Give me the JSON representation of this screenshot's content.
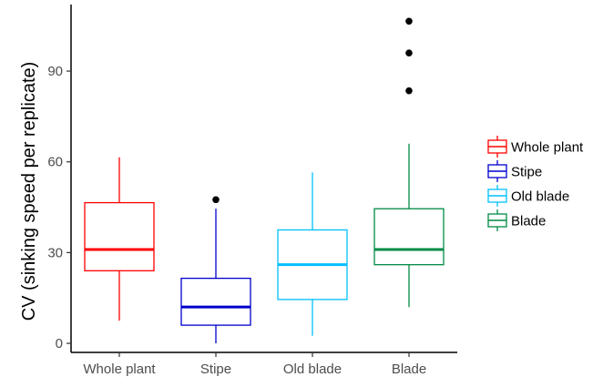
{
  "chart_data": {
    "type": "boxplot",
    "title": "",
    "xlabel": "",
    "ylabel": "CV (sinking speed per replicate)",
    "ylim": [
      -3,
      112
    ],
    "yticks": [
      0,
      30,
      60,
      90
    ],
    "grid": false,
    "legend_position": "right",
    "categories": [
      "Whole plant",
      "Stipe",
      "Old blade",
      "Blade"
    ],
    "series": [
      {
        "name": "Whole plant",
        "color": "#ff0000",
        "whisker_low": 7.5,
        "q1": 24,
        "median": 31,
        "q3": 46.5,
        "whisker_high": 61.5,
        "outliers": []
      },
      {
        "name": "Stipe",
        "color": "#0000cd",
        "whisker_low": 0,
        "q1": 6,
        "median": 12,
        "q3": 21.5,
        "whisker_high": 44.5,
        "outliers": [
          47.5
        ]
      },
      {
        "name": "Old blade",
        "color": "#00bfff",
        "whisker_low": 2.5,
        "q1": 14.5,
        "median": 26,
        "q3": 37.5,
        "whisker_high": 56.5,
        "outliers": []
      },
      {
        "name": "Blade",
        "color": "#008b45",
        "whisker_low": 12,
        "q1": 26,
        "median": 31,
        "q3": 44.5,
        "whisker_high": 66,
        "outliers": [
          83.5,
          96,
          106.5
        ]
      }
    ]
  }
}
